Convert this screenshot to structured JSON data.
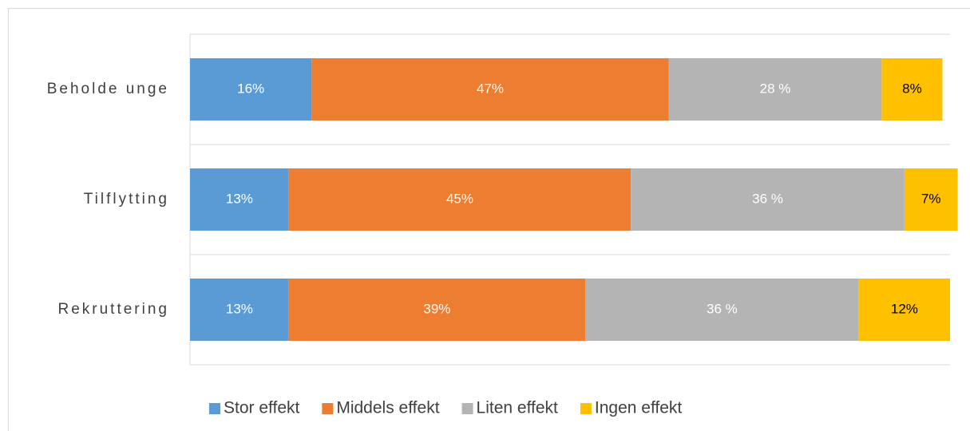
{
  "chart_data": {
    "type": "stacked-barh",
    "categories": [
      "Beholde unge",
      "Tilflytting",
      "Rekruttering"
    ],
    "series": [
      {
        "name": "Stor effekt",
        "color": "#5b9bd5",
        "label_color": "#ffffff",
        "values": [
          16,
          13,
          13
        ],
        "value_labels": [
          "16%",
          "13%",
          "13%"
        ]
      },
      {
        "name": "Middels effekt",
        "color": "#ed7d31",
        "label_color": "#ffffff",
        "values": [
          47,
          45,
          39
        ],
        "value_labels": [
          "47%",
          "45%",
          "39%"
        ]
      },
      {
        "name": "Liten effekt",
        "color": "#b4b4b4",
        "label_color": "#ffffff",
        "values": [
          28,
          36,
          36
        ],
        "value_labels": [
          "28 %",
          "36 %",
          "36 %"
        ]
      },
      {
        "name": "Ingen effekt",
        "color": "#ffc000",
        "label_color": "#000000",
        "values": [
          8,
          7,
          12
        ],
        "value_labels": [
          "8%",
          "7%",
          "12%"
        ]
      }
    ],
    "xlim": [
      0,
      100
    ],
    "legend": "bottom"
  }
}
